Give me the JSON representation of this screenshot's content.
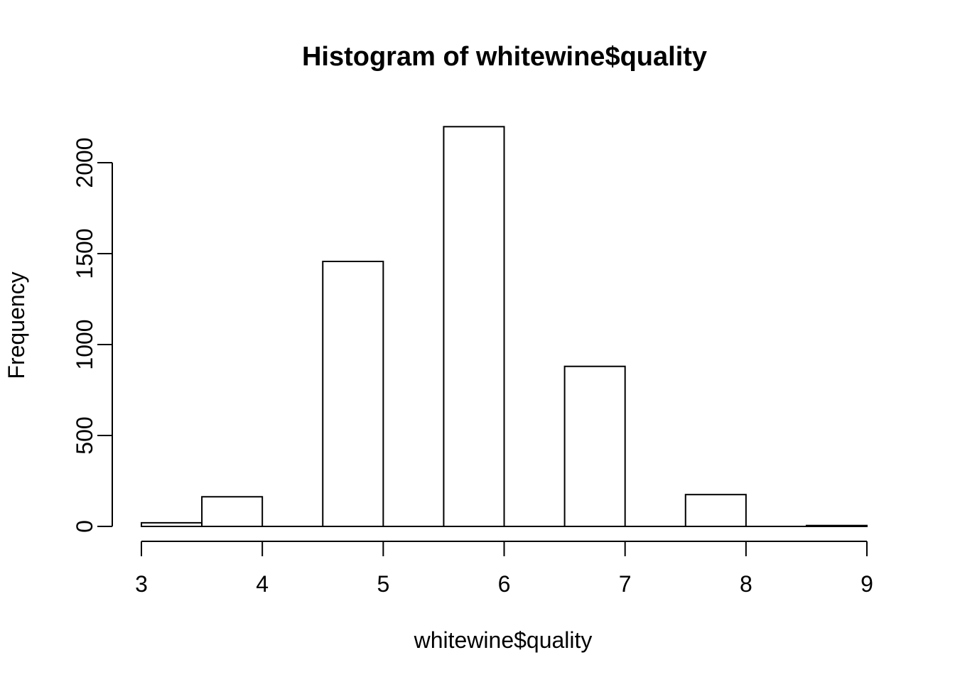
{
  "chart_data": {
    "type": "bar",
    "subtype": "histogram",
    "title": "Histogram of whitewine$quality",
    "xlabel": "whitewine$quality",
    "ylabel": "Frequency",
    "x_ticks": [
      3,
      4,
      5,
      6,
      7,
      8,
      9
    ],
    "y_ticks": [
      0,
      500,
      1000,
      1500,
      2000
    ],
    "xlim": [
      3,
      9
    ],
    "ylim": [
      0,
      2200
    ],
    "bin_width": 0.5,
    "bins": [
      {
        "from": 3.0,
        "to": 3.5,
        "count": 20
      },
      {
        "from": 3.5,
        "to": 4.0,
        "count": 163
      },
      {
        "from": 4.0,
        "to": 4.5,
        "count": 0
      },
      {
        "from": 4.5,
        "to": 5.0,
        "count": 1457
      },
      {
        "from": 5.0,
        "to": 5.5,
        "count": 0
      },
      {
        "from": 5.5,
        "to": 6.0,
        "count": 2198
      },
      {
        "from": 6.0,
        "to": 6.5,
        "count": 0
      },
      {
        "from": 6.5,
        "to": 7.0,
        "count": 880
      },
      {
        "from": 7.0,
        "to": 7.5,
        "count": 0
      },
      {
        "from": 7.5,
        "to": 8.0,
        "count": 175
      },
      {
        "from": 8.0,
        "to": 8.5,
        "count": 0
      },
      {
        "from": 8.5,
        "to": 9.0,
        "count": 5
      }
    ],
    "grid": false,
    "legend": null,
    "bar_fill": "#ffffff",
    "bar_stroke": "#000000",
    "axis_color": "#000000",
    "background": "#ffffff"
  }
}
